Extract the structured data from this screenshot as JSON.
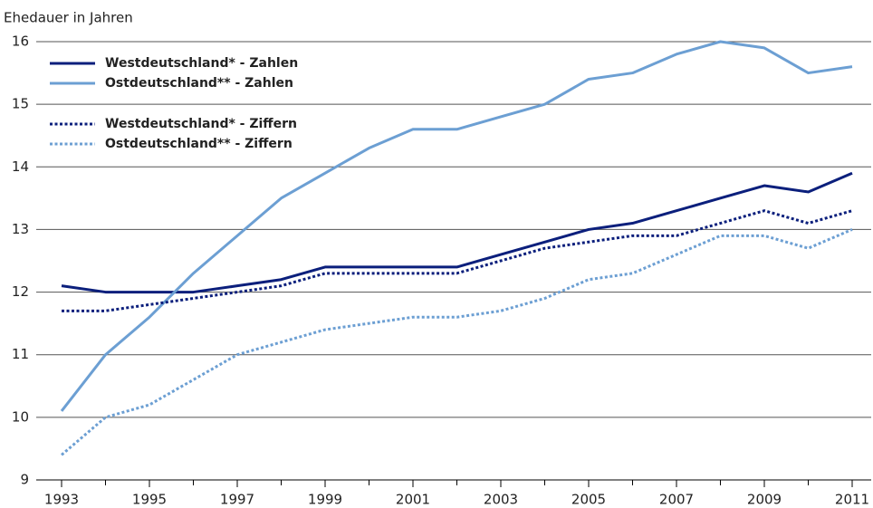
{
  "chart_data": {
    "type": "line",
    "y_label": "Ehedauer in Jahren",
    "x": [
      1993,
      1994,
      1995,
      1996,
      1997,
      1998,
      1999,
      2000,
      2001,
      2002,
      2003,
      2004,
      2005,
      2006,
      2007,
      2008,
      2009,
      2010,
      2011
    ],
    "series": [
      {
        "name": "Westdeutschland* - Zahlen",
        "color": "#0b1f7c",
        "dashed": false,
        "values": [
          12.1,
          12.0,
          12.0,
          12.0,
          12.1,
          12.2,
          12.4,
          12.4,
          12.4,
          12.4,
          12.6,
          12.8,
          13.0,
          13.1,
          13.3,
          13.5,
          13.7,
          13.6,
          13.9
        ]
      },
      {
        "name": "Ostdeutschland** - Zahlen",
        "color": "#6c9fd3",
        "dashed": false,
        "values": [
          10.1,
          11.0,
          11.6,
          12.3,
          12.9,
          13.5,
          13.9,
          14.3,
          14.6,
          14.6,
          14.8,
          15.0,
          15.4,
          15.5,
          15.8,
          16.0,
          15.9,
          15.5,
          15.6
        ]
      },
      {
        "name": "Westdeutschland* - Ziffern",
        "color": "#0b1f7c",
        "dashed": true,
        "values": [
          11.7,
          11.7,
          11.8,
          11.9,
          12.0,
          12.1,
          12.3,
          12.3,
          12.3,
          12.3,
          12.5,
          12.7,
          12.8,
          12.9,
          12.9,
          13.1,
          13.3,
          13.1,
          13.3
        ]
      },
      {
        "name": "Ostdeutschland** - Ziffern",
        "color": "#6c9fd3",
        "dashed": true,
        "values": [
          9.4,
          10.0,
          10.2,
          10.6,
          11.0,
          11.2,
          11.4,
          11.5,
          11.6,
          11.6,
          11.7,
          11.9,
          12.2,
          12.3,
          12.6,
          12.9,
          12.9,
          12.7,
          13.0
        ]
      }
    ],
    "xlim": [
      1993,
      2011
    ],
    "xticks": [
      1993,
      1995,
      1997,
      1999,
      2001,
      2003,
      2005,
      2007,
      2009,
      2011
    ],
    "ylim": [
      9,
      16
    ],
    "yticks": [
      9,
      10,
      11,
      12,
      13,
      14,
      15,
      16
    ],
    "grid": true,
    "legend": "top-left"
  }
}
